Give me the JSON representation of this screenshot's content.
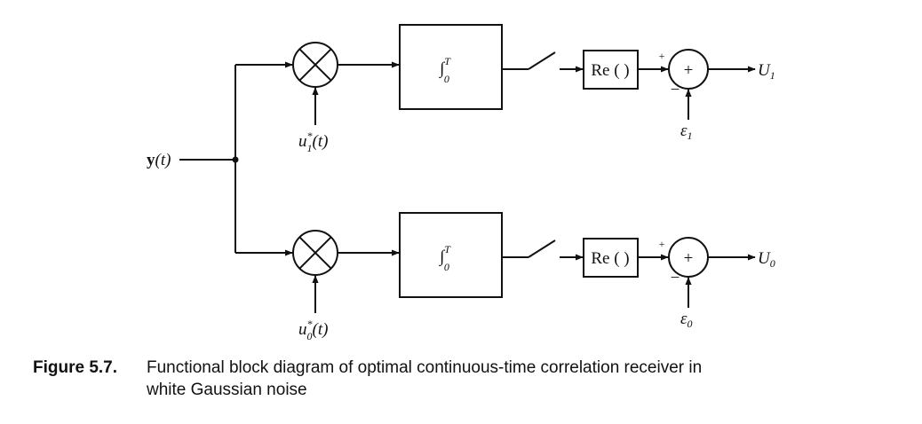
{
  "signal": {
    "base": "y",
    "arg": "(t)"
  },
  "branches": [
    {
      "reference": {
        "base": "u",
        "sup": "*",
        "sub": "1",
        "arg": "(t)"
      },
      "integrator": {
        "symbol": "∫",
        "lower": "0",
        "upper": "T"
      },
      "real_part": "Re ( )",
      "plus": "+",
      "minus": "−",
      "adder": "+",
      "threshold": {
        "base": "ε",
        "sub": "1"
      },
      "output": {
        "base": "U",
        "sub": "1"
      }
    },
    {
      "reference": {
        "base": "u",
        "sup": "*",
        "sub": "0",
        "arg": "(t)"
      },
      "integrator": {
        "symbol": "∫",
        "lower": "0",
        "upper": "T"
      },
      "real_part": "Re ( )",
      "plus": "+",
      "minus": "−",
      "adder": "+",
      "threshold": {
        "base": "ε",
        "sub": "0"
      },
      "output": {
        "base": "U",
        "sub": "0"
      }
    }
  ],
  "caption": {
    "label": "Figure 5.7.",
    "lines": [
      "Functional block diagram of optimal continuous-time correlation receiver in",
      "white Gaussian noise"
    ]
  }
}
